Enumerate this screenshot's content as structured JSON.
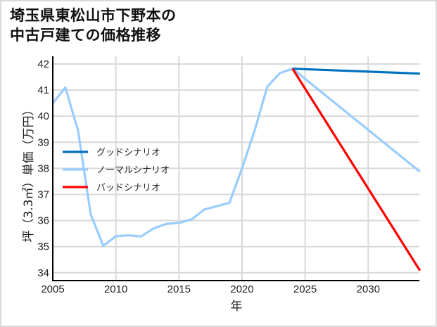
{
  "title_lines": [
    "埼玉県東松山市下野本の",
    "中古戸建ての価格推移"
  ],
  "chart_data": {
    "type": "line",
    "title": "埼玉県東松山市下野本の中古戸建ての価格推移",
    "xlabel": "年",
    "ylabel": "坪（3.3㎡）単価（万円）",
    "xlim": [
      2005,
      2034.1
    ],
    "ylim": [
      33.7,
      42.2
    ],
    "xticks": [
      2005,
      2010,
      2015,
      2020,
      2025,
      2030
    ],
    "yticks": [
      34,
      35,
      36,
      37,
      38,
      39,
      40,
      41,
      42
    ],
    "grid": true,
    "legend_position": "left-middle",
    "series": [
      {
        "name": "グッドシナリオ",
        "color": "#0070c0",
        "x": [
          2024,
          2034.1
        ],
        "values": [
          41.82,
          41.63
        ]
      },
      {
        "name": "ノーマルシナリオ",
        "color": "#99ccff",
        "x": [
          2005,
          2006,
          2007,
          2008,
          2009,
          2010,
          2011,
          2012,
          2013,
          2014,
          2015,
          2016,
          2017,
          2018,
          2019,
          2020,
          2021,
          2022,
          2023,
          2024,
          2034.1
        ],
        "values": [
          40.5,
          41.1,
          39.45,
          36.25,
          35.03,
          35.4,
          35.43,
          35.39,
          35.7,
          35.87,
          35.91,
          36.04,
          36.42,
          36.55,
          36.68,
          38.0,
          39.45,
          41.13,
          41.65,
          41.82,
          37.87
        ]
      },
      {
        "name": "バッドシナリオ",
        "color": "#ff0000",
        "x": [
          2024,
          2034.1
        ],
        "values": [
          41.82,
          34.08
        ]
      }
    ]
  }
}
